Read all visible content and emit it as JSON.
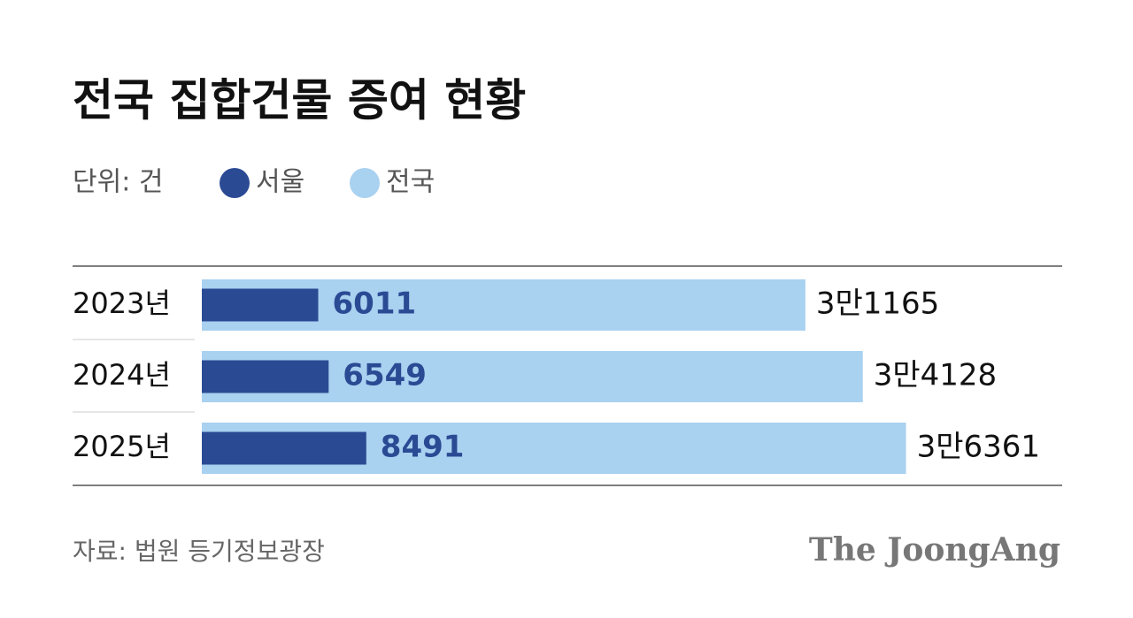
{
  "chart_data": {
    "type": "overlapbar",
    "title": "전국 집합건물 증여 현황",
    "unit": "단위: 건",
    "categories": [
      "2023년",
      "2024년",
      "2025년"
    ],
    "series": [
      {
        "name": "서울",
        "color": "#2b4a94",
        "values": [
          6011,
          6549,
          8491
        ]
      },
      {
        "name": "전국",
        "color": "#a9d1f0",
        "values": [
          31165,
          34128,
          36361
        ],
        "value_labels": [
          "3만1165",
          "3만4128",
          "3만6361"
        ]
      }
    ],
    "source": "자료: 법원 등기정보광장",
    "brand": "The JoongAng"
  }
}
